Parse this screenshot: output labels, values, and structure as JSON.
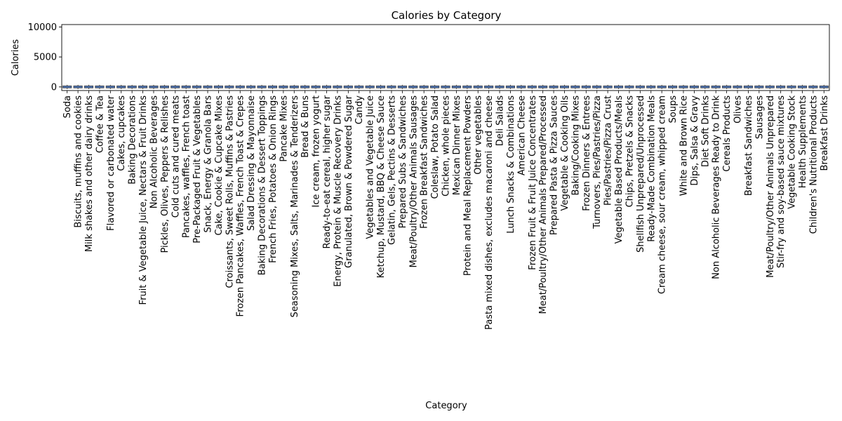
{
  "chart_data": {
    "type": "box",
    "title": "Calories by Category",
    "xlabel": "Category",
    "ylabel": "Calories",
    "ylim": [
      -600,
      10400
    ],
    "yticks": [
      0,
      5000,
      10000
    ],
    "grid": false,
    "legend": "none",
    "box_color": "#4c72b0",
    "outlier_style": "open-circle",
    "categories": [
      "Soda",
      "Biscuits, muffins and cookies",
      "Milk shakes and other dairy drinks",
      "Coffee & Tea",
      "Flavored or carbonated water",
      "Cakes, cupcakes",
      "Baking Decorations",
      "Fruit & Vegetable Juice, Nectars & Fruit Drinks",
      "Non Alcoholic Beverages",
      "Pickles, Olives, Peppers & Relishes",
      "Cold cuts and cured meats",
      "Pancakes, waffles, French toast",
      "Pre-Packaged Fruit & Vegetables",
      "Snack, Energy & Granola Bars",
      "Cake, Cookie & Cupcake Mixes",
      "Croissants, Sweet Rolls, Muffins & Pastries",
      "Frozen Pancakes, Waffles, French Toast & Crepes",
      "Salad Dressing & Mayonnaise",
      "Baking Decorations & Dessert Toppings",
      "French Fries, Potatoes & Onion Rings",
      "Pancake Mixes",
      "Seasoning Mixes, Salts, Marinades & Tenderizers",
      "Bread & Buns",
      "Ice cream, frozen yogurt",
      "Ready-to-eat cereal, higher sugar",
      "Energy, Protein & Muscle Recovery Drinks",
      "Granulated, Brown & Powdered Sugar",
      "Candy",
      "Vegetables and Vegetable Juice",
      "Ketchup, Mustard, BBQ & Cheese Sauce",
      "Gelatin, Gels, Pectins & Desserts",
      "Prepared Subs & Sandwiches",
      "Meat/Poultry/Other Animals Sausages",
      "Frozen Breakfast Sandwiches",
      "Coleslaw, Potato Salad",
      "Chicken, whole pieces",
      "Mexican Dinner Mixes",
      "Protein and Meal Replacement Powders",
      "Other vegetables",
      "Pasta mixed dishes, excludes macaroni and cheese",
      "Deli Salads",
      "Lunch Snacks & Combinations",
      "American Cheese",
      "Frozen Fruit & Fruit Juice Concentrates",
      "Meat/Poultry/Other Animals Prepared/Processed",
      "Prepared Pasta & Pizza Sauces",
      "Vegetable & Cooking Oils",
      "Baking/Cooking Mixes",
      "Frozen Dinners & Entrees",
      "Turnovers, Pies/Pastries/Pizza",
      "Pies/Pastries/Pizza Crust",
      "Vegetable Based Products/Meals",
      "Chips, Pretzels & Snacks",
      "Shellfish Unprepared/Unprocessed",
      "Ready-Made Combination Meals",
      "Cream cheese, sour cream, whipped cream",
      "Soups",
      "White and Brown Rice",
      "Dips, Salsa & Gravy",
      "Diet Soft Drinks",
      "Non Alcoholic Beverages Ready to Drink",
      "Cereals Products",
      "Olives",
      "Breakfast Sandwiches",
      "Sausages",
      "Meat/Poultry/Other Animals Unprepared",
      "Stir-fry and soy-based sauce mixtures",
      "Vegetable Cooking Stock",
      "Health Supplements",
      "Children's Nutritional Products",
      "Breakfast Drinks"
    ]
  }
}
